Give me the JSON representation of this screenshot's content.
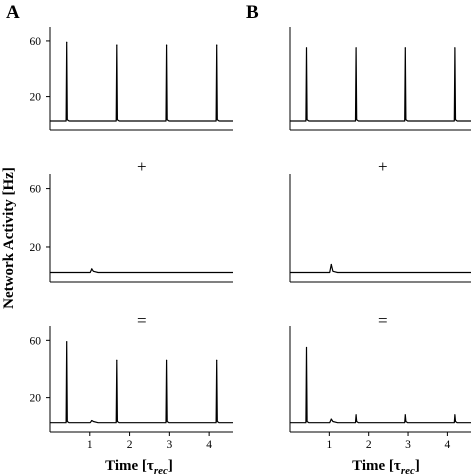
{
  "figure": {
    "panel_labels": [
      "A",
      "B"
    ],
    "ylabel": "Network Activity [Hz]",
    "xlabel_base": "Time [τ",
    "xlabel_sub": "rec",
    "xlabel_close": "]",
    "operators": [
      "+",
      "="
    ]
  },
  "chart_data": [
    {
      "type": "line",
      "panel": "A",
      "row": "top",
      "xlim": [
        0,
        4.6
      ],
      "ylim": [
        -4,
        70
      ],
      "yticks": [
        20,
        60
      ],
      "xticks": [],
      "baseline": 2.5,
      "spikes": [
        {
          "t": 0.42,
          "peak": 59
        },
        {
          "t": 1.68,
          "peak": 57
        },
        {
          "t": 2.93,
          "peak": 57
        },
        {
          "t": 4.19,
          "peak": 57
        }
      ],
      "bumps": []
    },
    {
      "type": "line",
      "panel": "A",
      "row": "middle",
      "xlim": [
        0,
        4.6
      ],
      "ylim": [
        -4,
        70
      ],
      "yticks": [
        20,
        60
      ],
      "xticks": [],
      "baseline": 2.5,
      "spikes": [],
      "bumps": [
        {
          "t": 1.05,
          "peak": 5
        }
      ]
    },
    {
      "type": "line",
      "panel": "A",
      "row": "bottom",
      "xlim": [
        0,
        4.6
      ],
      "ylim": [
        -4,
        70
      ],
      "yticks": [
        20,
        60
      ],
      "xticks": [
        1,
        2,
        3,
        4
      ],
      "baseline": 2.5,
      "spikes": [
        {
          "t": 0.42,
          "peak": 59
        },
        {
          "t": 1.68,
          "peak": 46
        },
        {
          "t": 2.93,
          "peak": 46
        },
        {
          "t": 4.19,
          "peak": 46
        }
      ],
      "bumps": [
        {
          "t": 1.05,
          "peak": 4
        }
      ]
    },
    {
      "type": "line",
      "panel": "B",
      "row": "top",
      "xlim": [
        0,
        4.6
      ],
      "ylim": [
        -4,
        70
      ],
      "yticks": [],
      "xticks": [],
      "baseline": 2.5,
      "spikes": [
        {
          "t": 0.42,
          "peak": 55
        },
        {
          "t": 1.68,
          "peak": 55
        },
        {
          "t": 2.93,
          "peak": 55
        },
        {
          "t": 4.19,
          "peak": 55
        }
      ],
      "bumps": []
    },
    {
      "type": "line",
      "panel": "B",
      "row": "middle",
      "xlim": [
        0,
        4.6
      ],
      "ylim": [
        -4,
        70
      ],
      "yticks": [],
      "xticks": [],
      "baseline": 2.5,
      "spikes": [],
      "bumps": [
        {
          "t": 1.05,
          "peak": 8
        }
      ]
    },
    {
      "type": "line",
      "panel": "B",
      "row": "bottom",
      "xlim": [
        0,
        4.6
      ],
      "ylim": [
        -4,
        70
      ],
      "yticks": [],
      "xticks": [
        1,
        2,
        3,
        4
      ],
      "baseline": 2.5,
      "spikes": [
        {
          "t": 0.42,
          "peak": 55
        },
        {
          "t": 1.68,
          "peak": 8
        },
        {
          "t": 2.93,
          "peak": 8
        },
        {
          "t": 4.19,
          "peak": 8
        }
      ],
      "bumps": [
        {
          "t": 1.05,
          "peak": 5
        }
      ]
    }
  ]
}
